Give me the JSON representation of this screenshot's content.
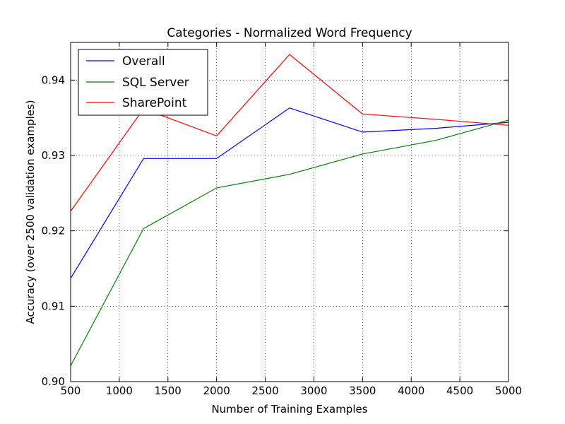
{
  "chart_data": {
    "type": "line",
    "title": "Categories - Normalized Word Frequency",
    "xlabel": "Number of Training Examples",
    "ylabel": "Accuracy (over 2500 validation examples)",
    "xlim": [
      500,
      5000
    ],
    "ylim": [
      0.9,
      0.945
    ],
    "xticks": [
      500,
      1000,
      1500,
      2000,
      2500,
      3000,
      3500,
      4000,
      4500,
      5000
    ],
    "xtick_labels": [
      "500",
      "1000",
      "1500",
      "2000",
      "2500",
      "3000",
      "3500",
      "4000",
      "4500",
      "5000"
    ],
    "yticks": [
      0.9,
      0.91,
      0.92,
      0.93,
      0.94
    ],
    "ytick_labels": [
      "0.90",
      "0.91",
      "0.92",
      "0.93",
      "0.94"
    ],
    "grid": true,
    "legend_position": "top-left",
    "series": [
      {
        "name": "Overall",
        "color": "#0000ff",
        "x": [
          500,
          1250,
          2000,
          2750,
          3500,
          4250,
          5000
        ],
        "y": [
          0.9137,
          0.9296,
          0.9296,
          0.9363,
          0.9331,
          0.9336,
          0.9344
        ]
      },
      {
        "name": "SQL Server",
        "color": "#008000",
        "x": [
          500,
          1250,
          2000,
          2750,
          3500,
          4250,
          5000
        ],
        "y": [
          0.9021,
          0.9203,
          0.9257,
          0.9275,
          0.9302,
          0.932,
          0.9347
        ]
      },
      {
        "name": "SharePoint",
        "color": "#ff0000",
        "x": [
          500,
          1250,
          2000,
          2750,
          3500,
          4250,
          5000
        ],
        "y": [
          0.9226,
          0.9362,
          0.9326,
          0.9434,
          0.9355,
          0.9348,
          0.934
        ]
      }
    ]
  }
}
